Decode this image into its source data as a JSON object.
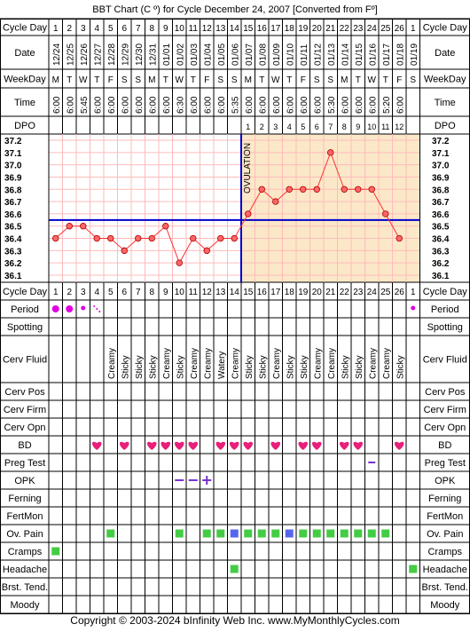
{
  "title": "BBT Chart (C º) for Cycle December 24, 2007  [Converted from Fº]",
  "footer": "Copyright © 2003-2024 bInfinity Web Inc.    www.MyMonthlyCycles.com",
  "row_labels": {
    "cycle_day": "Cycle Day",
    "date": "Date",
    "weekday": "WeekDay",
    "time": "Time",
    "dpo": "DPO",
    "period": "Period",
    "spotting": "Spotting",
    "cerv_fluid": "Cerv Fluid",
    "cerv_pos": "Cerv Pos",
    "cerv_firm": "Cerv Firm",
    "cerv_opn": "Cerv Opn",
    "bd": "BD",
    "preg_test": "Preg Test",
    "opk": "OPK",
    "ferning": "Ferning",
    "fertmon": "FertMon",
    "ov_pain": "Ov. Pain",
    "cramps": "Cramps",
    "headache": "Headache",
    "brst_tend": "Brst. Tend.",
    "moody": "Moody"
  },
  "colors": {
    "line": "#ff3333",
    "coverline": "#0000cc",
    "ovulation": "#0000cc",
    "post_ov_shade": "#fbe8c8",
    "grid": "#ffbbbb",
    "period": "#e000e0",
    "bd": "#e8207a",
    "opk": "#7733cc",
    "ov_pain": "#44cc44",
    "ov_pain_alt": "#5566ee",
    "cramps": "#44cc44",
    "headache": "#44cc44"
  },
  "chart_data": {
    "type": "line",
    "title": "BBT Chart (C º) for Cycle December 24, 2007  [Converted from Fº]",
    "xlabel": "Cycle Day",
    "ylabel": "",
    "ylim": [
      36.1,
      37.2
    ],
    "y_ticks": [
      "37.2",
      "37.1",
      "37.0",
      "36.9",
      "36.8",
      "36.7",
      "36.6",
      "36.5",
      "36.4",
      "36.3",
      "36.2",
      "36.1"
    ],
    "grid": true,
    "cycle_days": [
      "1",
      "2",
      "3",
      "4",
      "5",
      "6",
      "7",
      "8",
      "9",
      "10",
      "11",
      "12",
      "13",
      "14",
      "15",
      "16",
      "17",
      "18",
      "19",
      "20",
      "21",
      "22",
      "23",
      "24",
      "25",
      "26",
      "1"
    ],
    "dates": [
      "12/24",
      "12/25",
      "12/26",
      "12/27",
      "12/28",
      "12/29",
      "12/30",
      "12/31",
      "01/01",
      "01/02",
      "01/03",
      "01/04",
      "01/05",
      "01/06",
      "01/07",
      "01/08",
      "01/09",
      "01/10",
      "01/11",
      "01/12",
      "01/13",
      "01/14",
      "01/15",
      "01/16",
      "01/17",
      "01/18",
      "01/19"
    ],
    "weekdays": [
      "M",
      "T",
      "W",
      "T",
      "F",
      "S",
      "S",
      "M",
      "T",
      "W",
      "T",
      "F",
      "S",
      "S",
      "M",
      "T",
      "W",
      "T",
      "F",
      "S",
      "S",
      "M",
      "T",
      "W",
      "T",
      "F",
      "S"
    ],
    "times": [
      "6:00",
      "6:00",
      "5:45",
      "6:00",
      "6:00",
      "6:00",
      "6:00",
      "6:00",
      "6:00",
      "6:30",
      "6:00",
      "6:00",
      "6:00",
      "5:35",
      "6:00",
      "6:00",
      "6:00",
      "6:00",
      "6:00",
      "6:00",
      "5:30",
      "6:00",
      "6:00",
      "6:00",
      "5:20",
      "6:00",
      ""
    ],
    "dpo": [
      "",
      "",
      "",
      "",
      "",
      "",
      "",
      "",
      "",
      "",
      "",
      "",
      "",
      "",
      "1",
      "2",
      "3",
      "4",
      "5",
      "6",
      "7",
      "8",
      "9",
      "10",
      "11",
      "12",
      ""
    ],
    "series": [
      {
        "values": [
          36.4,
          36.5,
          36.5,
          36.4,
          36.4,
          36.3,
          36.4,
          36.4,
          36.5,
          36.2,
          36.4,
          36.3,
          36.4,
          36.4,
          36.6,
          36.8,
          36.7,
          36.8,
          36.8,
          36.8,
          37.1,
          36.8,
          36.8,
          36.8,
          36.6,
          36.4,
          null
        ]
      }
    ],
    "coverline": 36.55,
    "ovulation_after_day_index": 13,
    "ovulation_label": "OVULATION",
    "observations": {
      "period": [
        "heavy",
        "heavy",
        "medium",
        "light",
        "",
        "",
        "",
        "",
        "",
        "",
        "",
        "",
        "",
        "",
        "",
        "",
        "",
        "",
        "",
        "",
        "",
        "",
        "",
        "",
        "",
        "",
        "medium"
      ],
      "cerv_fluid": [
        "",
        "",
        "",
        "",
        "Creamy",
        "Sticky",
        "Sticky",
        "Sticky",
        "Creamy",
        "Sticky",
        "Creamy",
        "Creamy",
        "Watery",
        "Creamy",
        "Sticky",
        "Sticky",
        "Creamy",
        "Sticky",
        "Sticky",
        "Creamy",
        "Creamy",
        "Sticky",
        "Sticky",
        "Creamy",
        "Creamy",
        "Sticky",
        ""
      ],
      "bd": [
        0,
        0,
        0,
        1,
        0,
        1,
        0,
        1,
        1,
        1,
        1,
        0,
        1,
        1,
        1,
        0,
        1,
        0,
        1,
        1,
        0,
        1,
        1,
        0,
        0,
        1,
        0
      ],
      "preg_test": [
        0,
        0,
        0,
        0,
        0,
        0,
        0,
        0,
        0,
        0,
        0,
        0,
        0,
        0,
        0,
        0,
        0,
        0,
        0,
        0,
        0,
        0,
        0,
        1,
        0,
        0,
        0
      ],
      "opk": [
        "",
        "",
        "",
        "",
        "",
        "",
        "",
        "",
        "",
        "-",
        "-",
        "+",
        "",
        "",
        "",
        "",
        "",
        "",
        "",
        "",
        "",
        "",
        "",
        "",
        "",
        "",
        ""
      ],
      "ov_pain": [
        "",
        "",
        "",
        "",
        "g",
        "",
        "",
        "",
        "",
        "g",
        "",
        "g",
        "g",
        "b",
        "g",
        "g",
        "g",
        "b",
        "g",
        "g",
        "g",
        "g",
        "g",
        "g",
        "g",
        "",
        ""
      ],
      "cramps": [
        1,
        0,
        0,
        0,
        0,
        0,
        0,
        0,
        0,
        0,
        0,
        0,
        0,
        0,
        0,
        0,
        0,
        0,
        0,
        0,
        0,
        0,
        0,
        0,
        0,
        0,
        0
      ],
      "headache": [
        0,
        0,
        0,
        0,
        0,
        0,
        0,
        0,
        0,
        0,
        0,
        0,
        0,
        1,
        0,
        0,
        0,
        0,
        0,
        0,
        0,
        0,
        0,
        0,
        0,
        0,
        1
      ]
    }
  }
}
